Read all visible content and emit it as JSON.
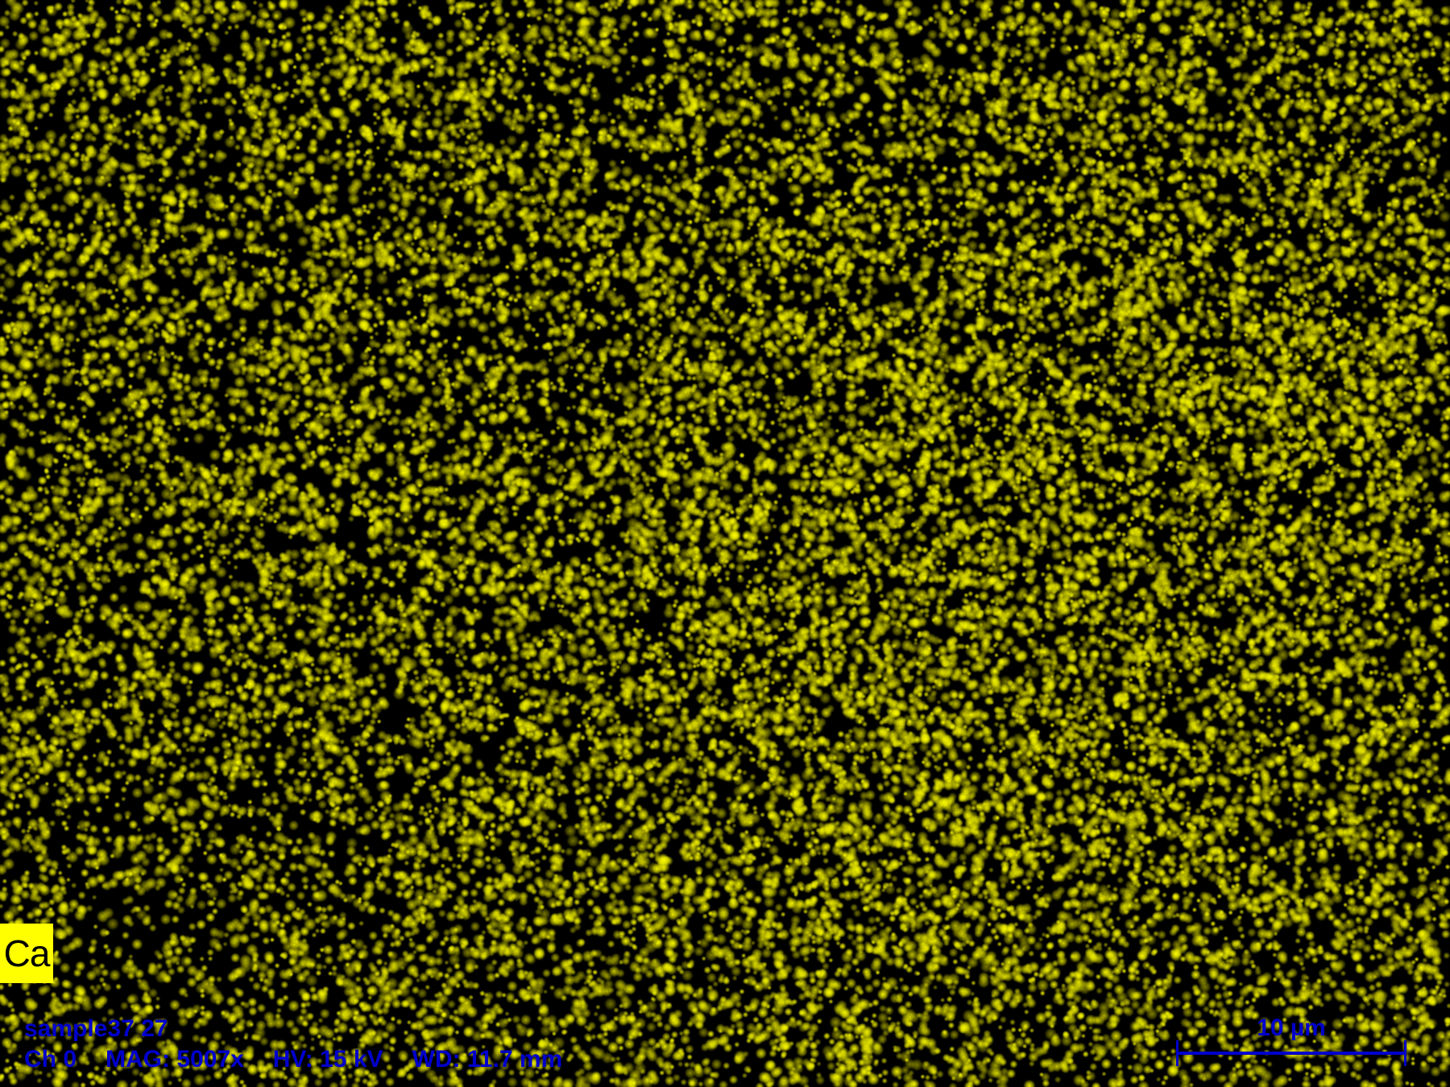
{
  "map": {
    "element": "Ca",
    "colors": {
      "signal": "#ffff00",
      "background": "#000000",
      "annotation": "#0000cc"
    }
  },
  "info": {
    "sample": "sample37 27",
    "channel": "Ch 0",
    "magnification": "MAG: 5007x",
    "high_voltage": "HV: 15 kV",
    "working_distance": "WD: 11.7 mm"
  },
  "scalebar": {
    "label": "10 µm"
  }
}
